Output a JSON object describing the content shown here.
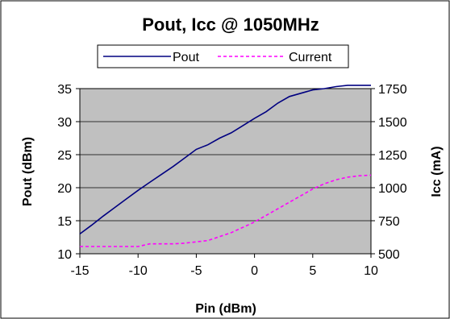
{
  "chart_data": {
    "type": "line",
    "title": "Pout, Icc @ 1050MHz",
    "xlabel": "Pin  (dBm)",
    "ylabel": "Pout (dBm)",
    "y2label": "Icc (mA)",
    "xlim": [
      -15,
      10
    ],
    "ylim": [
      10,
      35
    ],
    "y2lim": [
      500,
      1750
    ],
    "xticks": [
      "-15",
      "-10",
      "-5",
      "0",
      "5",
      "10"
    ],
    "yticks": [
      "10",
      "15",
      "20",
      "25",
      "30",
      "35"
    ],
    "y2ticks": [
      "500",
      "750",
      "1000",
      "1250",
      "1500",
      "1750"
    ],
    "grid": true,
    "legend_position": "top",
    "plot_background": "#c0c0c0",
    "series": [
      {
        "name": "Pout",
        "axis": "left",
        "color": "#000080",
        "style": "solid",
        "x": [
          -15,
          -14,
          -13,
          -12,
          -11,
          -10,
          -9,
          -8,
          -7,
          -6,
          -5,
          -4,
          -3,
          -2,
          -1,
          0,
          1,
          2,
          3,
          4,
          5,
          6,
          7,
          8,
          9,
          10
        ],
        "values": [
          13.0,
          14.3,
          15.7,
          17.0,
          18.3,
          19.6,
          20.8,
          22.0,
          23.2,
          24.5,
          25.8,
          26.5,
          27.5,
          28.3,
          29.4,
          30.5,
          31.5,
          32.8,
          33.8,
          34.3,
          34.8,
          35.0,
          35.3,
          35.5,
          35.5,
          35.5
        ]
      },
      {
        "name": "Current",
        "axis": "right",
        "color": "#ff00ff",
        "style": "dashed",
        "x": [
          -15,
          -14,
          -13,
          -12,
          -11,
          -10,
          -9,
          -8,
          -7,
          -6,
          -5,
          -4,
          -3,
          -2,
          -1,
          0,
          1,
          2,
          3,
          4,
          5,
          6,
          7,
          8,
          9,
          10
        ],
        "values": [
          555,
          555,
          555,
          555,
          555,
          555,
          575,
          575,
          575,
          580,
          590,
          600,
          630,
          660,
          700,
          740,
          790,
          840,
          890,
          940,
          990,
          1030,
          1060,
          1080,
          1090,
          1095
        ]
      }
    ]
  }
}
